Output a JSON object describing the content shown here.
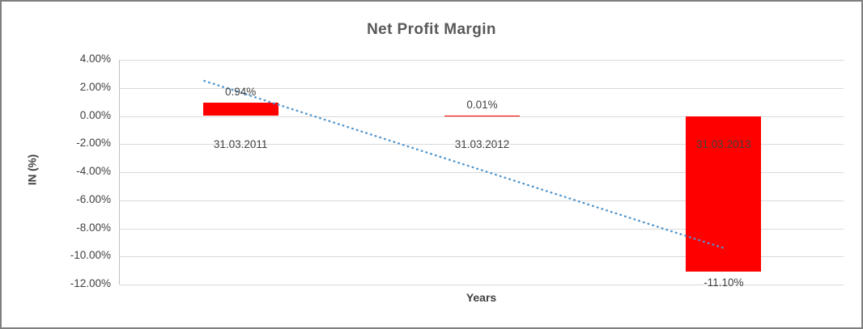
{
  "chart_data": {
    "type": "bar",
    "title": "Net Profit Margin",
    "xlabel": "Years",
    "ylabel": "IN (%)",
    "categories": [
      "31.03.2011",
      "31.03.2012",
      "31.03.2013"
    ],
    "values": [
      0.94,
      0.01,
      -11.1
    ],
    "data_labels": [
      "0.94%",
      "0.01%",
      "-11.10%"
    ],
    "ylim": [
      -12,
      4
    ],
    "yticks": [
      {
        "value": 4,
        "label": "4.00%"
      },
      {
        "value": 2,
        "label": "2.00%"
      },
      {
        "value": 0,
        "label": "0.00%"
      },
      {
        "value": -2,
        "label": "-2.00%"
      },
      {
        "value": -4,
        "label": "-4.00%"
      },
      {
        "value": -6,
        "label": "-6.00%"
      },
      {
        "value": -8,
        "label": "-8.00%"
      },
      {
        "value": -10,
        "label": "-10.00%"
      },
      {
        "value": -12,
        "label": "-12.00%"
      }
    ],
    "grid": true,
    "legend": "none",
    "bar_color": "#FF0000",
    "label_color": "#404040",
    "title_color": "#595959",
    "gridline_color": "#D9D9D9",
    "axis_line_color": "#BFBFBF",
    "trendline": {
      "type": "linear",
      "style": "dotted",
      "color": "#4E95CF",
      "x1_cat": -0.15,
      "v1": 2.5,
      "x2_cat": 2.0,
      "v2": -9.4
    }
  }
}
